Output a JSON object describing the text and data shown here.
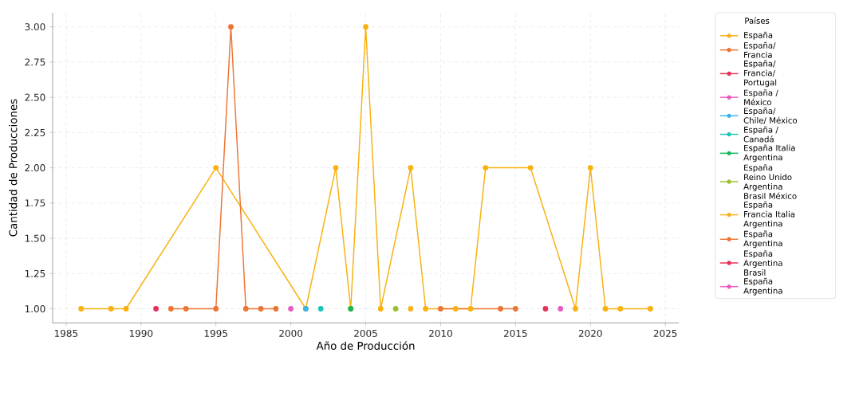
{
  "chart_data": {
    "type": "line",
    "xlabel": "Año de Producción",
    "ylabel": "Cantidad de Producciones",
    "legend_title": "Países",
    "legend": "right",
    "grid": true,
    "marker": "circle",
    "line_style": "solid",
    "xlim": [
      1984.1,
      2025.9
    ],
    "xticks": [
      1985,
      1990,
      1995,
      2000,
      2005,
      2010,
      2015,
      2020,
      2025
    ],
    "ylim": [
      0.9,
      3.1
    ],
    "yticks": [
      {
        "value": 1,
        "label": "1.00"
      },
      {
        "value": 1.25,
        "label": "1.25"
      },
      {
        "value": 1.5,
        "label": "1.50"
      },
      {
        "value": 1.75,
        "label": "1.75"
      },
      {
        "value": 2,
        "label": "2.00"
      },
      {
        "value": 2.25,
        "label": "2.25"
      },
      {
        "value": 2.5,
        "label": "2.50"
      },
      {
        "value": 2.75,
        "label": "2.75"
      },
      {
        "value": 3,
        "label": "3.00"
      }
    ],
    "series": [
      {
        "name": "España",
        "color": "#f9b10f",
        "x": [
          1986,
          1988,
          1989,
          1995,
          2001,
          2003,
          2004,
          2005,
          2006,
          2008,
          2009,
          2011,
          2012,
          2013,
          2016,
          2019,
          2020,
          2021,
          2022,
          2024
        ],
        "values": [
          1,
          1,
          1,
          2,
          1,
          2,
          1,
          3,
          1,
          2,
          1,
          1,
          1,
          2,
          2,
          1,
          2,
          1,
          1,
          1
        ]
      },
      {
        "name": "España/ Francia",
        "color": "#ec7535",
        "x": [
          1992,
          1993,
          1995,
          1996,
          1997,
          1998,
          1999
        ],
        "values": [
          1,
          1,
          1,
          3,
          1,
          1,
          1
        ]
      },
      {
        "name": "España/ Francia/ Portugal",
        "color": "#e8315a",
        "x": [
          1991
        ],
        "values": [
          1
        ]
      },
      {
        "name": "España / México",
        "color": "#e95cbf",
        "x": [
          2000
        ],
        "values": [
          1
        ]
      },
      {
        "name": "España/ Chile/ México",
        "color": "#3bb3ee",
        "x": [
          2001
        ],
        "values": [
          1
        ]
      },
      {
        "name": "España / Canadá",
        "color": "#1bc6b6",
        "x": [
          2002
        ],
        "values": [
          1
        ]
      },
      {
        "name": "España Italia Argentina",
        "color": "#14b85a",
        "x": [
          2004
        ],
        "values": [
          1
        ]
      },
      {
        "name": "España Reino Unido Argentina Brasil México",
        "color": "#99c22f",
        "x": [
          2007
        ],
        "values": [
          1
        ]
      },
      {
        "name": "España Francia Italia Argentina",
        "color": "#f7b21b",
        "x": [
          2008
        ],
        "values": [
          1
        ]
      },
      {
        "name": "España Argentina",
        "color": "#ec7535",
        "x": [
          2010,
          2014,
          2015
        ],
        "values": [
          1,
          1,
          1
        ]
      },
      {
        "name": "España Argentina Brasil",
        "color": "#e8315a",
        "x": [
          2017
        ],
        "values": [
          1
        ]
      },
      {
        "name": "España Argentina",
        "color": "#e95cbf",
        "x": [
          2018
        ],
        "values": [
          1
        ]
      }
    ]
  }
}
